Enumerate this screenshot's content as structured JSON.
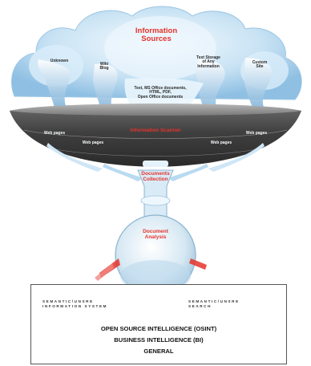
{
  "cloud": {
    "title_line1": "Information",
    "title_line2": "Sources",
    "labels": [
      {
        "id": "unknown",
        "text": "Unknown"
      },
      {
        "id": "wiki",
        "text": "Wiki\nBlog"
      },
      {
        "id": "text-stream",
        "text": "Text Storage\nof Any\nInformation"
      },
      {
        "id": "custom",
        "text": "Custom\nSite"
      },
      {
        "id": "formats",
        "text": "Text, MS Office documents,\nHTML, PDF,\nOpen Office documents"
      }
    ]
  },
  "bowl": {
    "scanner_label": "Information Scanner",
    "side_labels": [
      "Web pages",
      "Web pages",
      "Web pages",
      "Web pages"
    ]
  },
  "funnel": {
    "collection_line1": "Documents",
    "collection_line2": "Collection"
  },
  "flask": {
    "label_line1": "Document",
    "label_line2": "Analysis"
  },
  "output": {
    "left_system": "SEMANTIC/UNSRE\nINFORMATION SYSTEM",
    "right_system": "SEMANTIC/UNSRE\nSEARCH",
    "line1": "OPEN SOURCE INTELLIGENCE (OSINT)",
    "line2": "BUSINESS INTELLIGENCE (BI)",
    "line3": "GENERAL"
  },
  "colors": {
    "accent_red": "#e5322a",
    "cloud_blue": "#9ecbea",
    "bowl_dark": "#4b4b4b",
    "glass": "#d5e7f2"
  }
}
